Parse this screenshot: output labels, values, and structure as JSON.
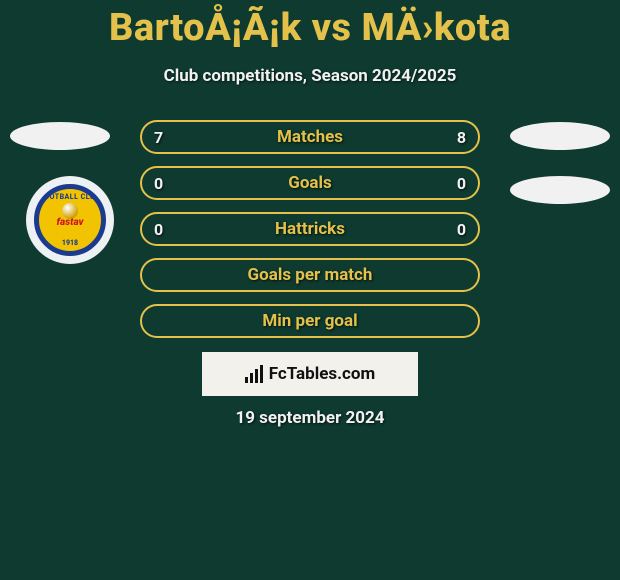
{
  "title": "BartoÅ¡Ã¡k vs MÄ›kota",
  "subtitle": "Club competitions, Season 2024/2025",
  "date": "19 september 2024",
  "colors": {
    "background": "#0e3a2f",
    "accent": "#e3c14a",
    "text_light": "#f1f1f1",
    "panel": "#f3f1ec"
  },
  "badge": {
    "top_text": "FOOTBALL CLUB",
    "mid_text": "fastav",
    "bottom_text": "1918",
    "outer_bg": "#eef1f4",
    "inner_bg": "#f2c300",
    "ring_color": "#1a3b8f",
    "mid_color": "#d01020"
  },
  "fctables": {
    "label": "FcTables.com"
  },
  "rows": [
    {
      "label": "Matches",
      "left": "7",
      "right": "8"
    },
    {
      "label": "Goals",
      "left": "0",
      "right": "0"
    },
    {
      "label": "Hattricks",
      "left": "0",
      "right": "0"
    },
    {
      "label": "Goals per match",
      "left": "",
      "right": ""
    },
    {
      "label": "Min per goal",
      "left": "",
      "right": ""
    }
  ]
}
